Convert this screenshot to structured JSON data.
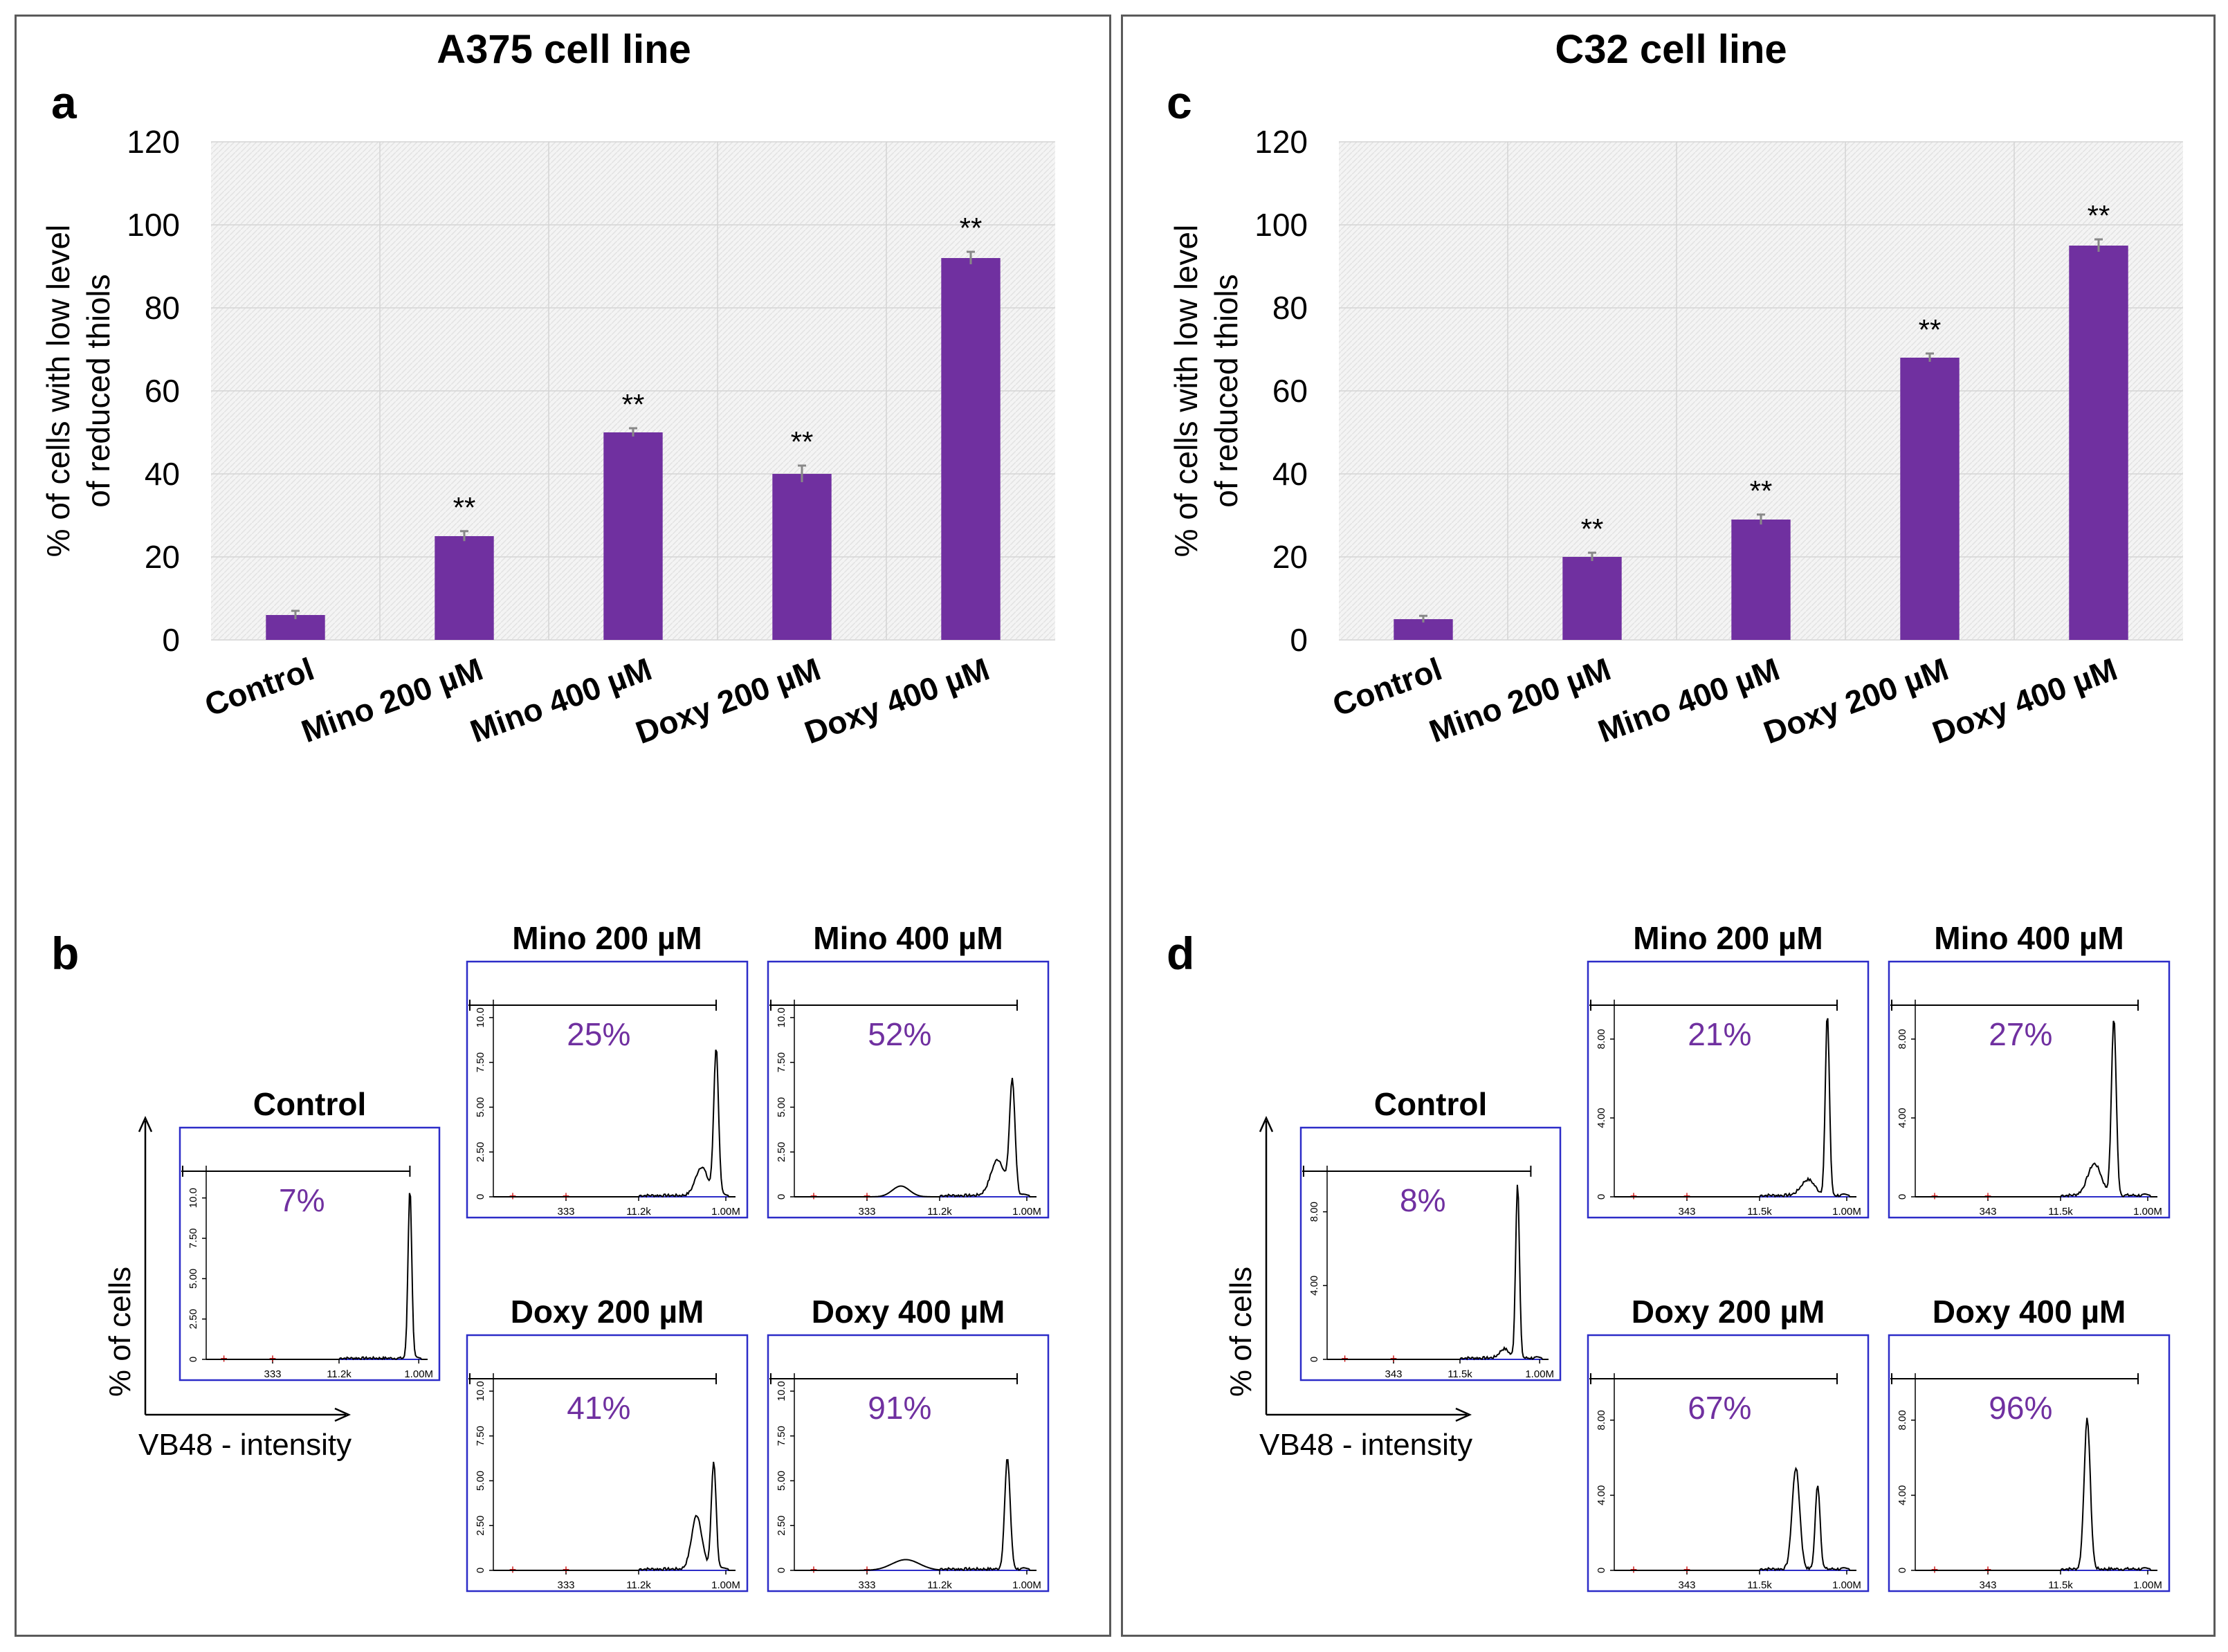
{
  "cell_lines": [
    {
      "title": "A375 cell line",
      "bar_letter": "a",
      "hist_letter": "b"
    },
    {
      "title": "C32 cell line",
      "bar_letter": "c",
      "hist_letter": "d"
    }
  ],
  "colors": {
    "bar": "#7030a0",
    "percent_text": "#7030a0",
    "frame": "#2c2cc8",
    "gate_marker": "#cc0000"
  },
  "chart_data": [
    {
      "type": "bar",
      "title": "A375 cell line",
      "panel": "a",
      "categories": [
        "Control",
        "Mino 200 µM",
        "Mino 400 µM",
        "Doxy 200 µM",
        "Doxy 400 µM"
      ],
      "values": [
        6,
        25,
        50,
        40,
        92
      ],
      "error": [
        1,
        1.2,
        1,
        2,
        1.5
      ],
      "significance": [
        "",
        "**",
        "**",
        "**",
        "**"
      ],
      "ylabel": "% of cells with low level of reduced thiols",
      "ylabel_lines": [
        "% of cells with low level",
        "of reduced thiols"
      ],
      "ylim": [
        0,
        120
      ],
      "yticks": [
        0,
        20,
        40,
        60,
        80,
        100,
        120
      ],
      "grid": true
    },
    {
      "type": "bar",
      "title": "C32 cell line",
      "panel": "c",
      "categories": [
        "Control",
        "Mino 200 µM",
        "Mino 400 µM",
        "Doxy 200 µM",
        "Doxy 400 µM"
      ],
      "values": [
        5,
        20,
        29,
        68,
        95
      ],
      "error": [
        0.8,
        1,
        1.2,
        1,
        1.5
      ],
      "significance": [
        "",
        "**",
        "**",
        "**",
        "**"
      ],
      "ylabel": "% of cells with low level of reduced thiols",
      "ylabel_lines": [
        "% of cells with low level",
        "of reduced thiols"
      ],
      "ylim": [
        0,
        120
      ],
      "yticks": [
        0,
        20,
        40,
        60,
        80,
        100,
        120
      ],
      "grid": true
    },
    {
      "type": "histogram",
      "panel": "b",
      "xlabel": "VB48 - intensity",
      "ylabel": "% of cells",
      "plots": [
        {
          "title": "Control",
          "percent": "7%",
          "yticks": [
            "0",
            "2.50",
            "5.00",
            "7.50",
            "10.0"
          ],
          "ymax": 12,
          "xticks": [
            "333",
            "11.2k",
            "1.00M"
          ],
          "peaks": [
            {
              "x": 0.92,
              "h": 10.5,
              "w": 0.012
            }
          ],
          "shoulder": []
        },
        {
          "title": "Mino 200 µM",
          "percent": "25%",
          "yticks": [
            "0",
            "2.50",
            "5.00",
            "7.50",
            "10.0"
          ],
          "ymax": 11,
          "xticks": [
            "333",
            "11.2k",
            "1.00M"
          ],
          "peaks": [
            {
              "x": 0.92,
              "h": 8.2,
              "w": 0.014
            }
          ],
          "shoulder": [
            {
              "x": 0.86,
              "h": 1.6,
              "w": 0.035
            }
          ]
        },
        {
          "title": "Mino 400 µM",
          "percent": "52%",
          "yticks": [
            "0",
            "2.50",
            "5.00",
            "7.50",
            "10.0"
          ],
          "ymax": 11,
          "xticks": [
            "333",
            "11.2k",
            "1.00M"
          ],
          "peaks": [
            {
              "x": 0.9,
              "h": 6.3,
              "w": 0.016
            }
          ],
          "shoulder": [
            {
              "x": 0.84,
              "h": 2.0,
              "w": 0.04
            },
            {
              "x": 0.44,
              "h": 0.6,
              "w": 0.05
            }
          ]
        },
        {
          "title": "Doxy 200 µM",
          "percent": "41%",
          "yticks": [
            "0",
            "2.50",
            "5.00",
            "7.50",
            "10.0"
          ],
          "ymax": 11,
          "xticks": [
            "333",
            "11.2k",
            "1.00M"
          ],
          "peaks": [
            {
              "x": 0.91,
              "h": 6.0,
              "w": 0.014
            }
          ],
          "shoulder": [
            {
              "x": 0.84,
              "h": 3.0,
              "w": 0.03
            }
          ]
        },
        {
          "title": "Doxy 400 µM",
          "percent": "91%",
          "yticks": [
            "0",
            "2.50",
            "5.00",
            "7.50",
            "10.0"
          ],
          "ymax": 11,
          "xticks": [
            "333",
            "11.2k",
            "1.00M"
          ],
          "peaks": [
            {
              "x": 0.88,
              "h": 6.2,
              "w": 0.016
            }
          ],
          "shoulder": [
            {
              "x": 0.46,
              "h": 0.6,
              "w": 0.08
            }
          ]
        }
      ]
    },
    {
      "type": "histogram",
      "panel": "d",
      "xlabel": "VB48 - intensity",
      "ylabel": "% of cells",
      "plots": [
        {
          "title": "Control",
          "percent": "8%",
          "yticks": [
            "0",
            "4.00",
            "8.00"
          ],
          "ymax": 10.5,
          "xticks": [
            "343",
            "11.5k",
            "1.00M"
          ],
          "peaks": [
            {
              "x": 0.86,
              "h": 9.5,
              "w": 0.012
            }
          ],
          "shoulder": [
            {
              "x": 0.8,
              "h": 0.5,
              "w": 0.03
            }
          ]
        },
        {
          "title": "Mino 200 µM",
          "percent": "21%",
          "yticks": [
            "0",
            "4.00",
            "8.00"
          ],
          "ymax": 10,
          "xticks": [
            "343",
            "11.5k",
            "1.00M"
          ],
          "peaks": [
            {
              "x": 0.88,
              "h": 9.2,
              "w": 0.012
            }
          ],
          "shoulder": [
            {
              "x": 0.8,
              "h": 0.8,
              "w": 0.04
            }
          ]
        },
        {
          "title": "Mino 400 µM",
          "percent": "27%",
          "yticks": [
            "0",
            "4.00",
            "8.00"
          ],
          "ymax": 10,
          "xticks": [
            "343",
            "11.5k",
            "1.00M"
          ],
          "peaks": [
            {
              "x": 0.82,
              "h": 9.0,
              "w": 0.014
            }
          ],
          "shoulder": [
            {
              "x": 0.74,
              "h": 1.6,
              "w": 0.04
            }
          ]
        },
        {
          "title": "Doxy 200 µM",
          "percent": "67%",
          "yticks": [
            "0",
            "4.00",
            "8.00"
          ],
          "ymax": 10.5,
          "xticks": [
            "343",
            "11.5k",
            "1.00M"
          ],
          "peaks": [
            {
              "x": 0.75,
              "h": 5.4,
              "w": 0.022
            },
            {
              "x": 0.84,
              "h": 4.5,
              "w": 0.014
            }
          ],
          "shoulder": []
        },
        {
          "title": "Doxy 400 µM",
          "percent": "96%",
          "yticks": [
            "0",
            "4.00",
            "8.00"
          ],
          "ymax": 10.5,
          "xticks": [
            "343",
            "11.5k",
            "1.00M"
          ],
          "peaks": [
            {
              "x": 0.71,
              "h": 8.0,
              "w": 0.018
            }
          ],
          "shoulder": []
        }
      ]
    }
  ]
}
